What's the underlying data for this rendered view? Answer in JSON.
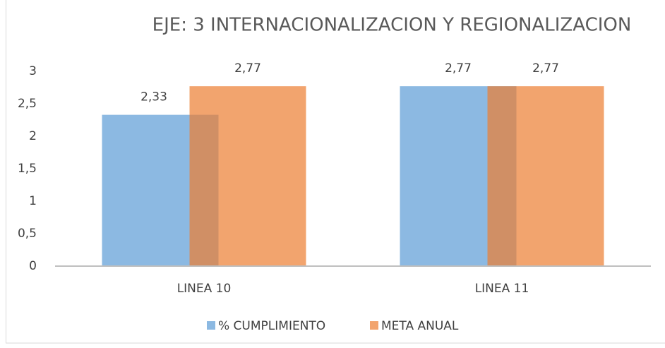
{
  "chart_data": {
    "type": "bar",
    "title": "EJE: 3 INTERNACIONALIZACION Y REGIONALIZACION",
    "categories": [
      "LINEA 10",
      "LINEA 11"
    ],
    "series": [
      {
        "name": "% CUMPLIMIENTO",
        "color": "#5b9bd5",
        "values": [
          2.33,
          2.77
        ],
        "value_labels": [
          "2,33",
          "2,77"
        ]
      },
      {
        "name": "META ANUAL",
        "color": "#ed7d31",
        "values": [
          2.77,
          2.77
        ],
        "value_labels": [
          "2,77",
          "2,77"
        ]
      }
    ],
    "ylim": [
      0,
      3
    ],
    "yticks": [
      0,
      {
        "value": 0.5,
        "label": "0,5"
      },
      1,
      {
        "value": 1.5,
        "label": "1,5"
      },
      2,
      {
        "value": 2.5,
        "label": "2,5"
      },
      3
    ],
    "grid": false,
    "legend": "bottom"
  }
}
